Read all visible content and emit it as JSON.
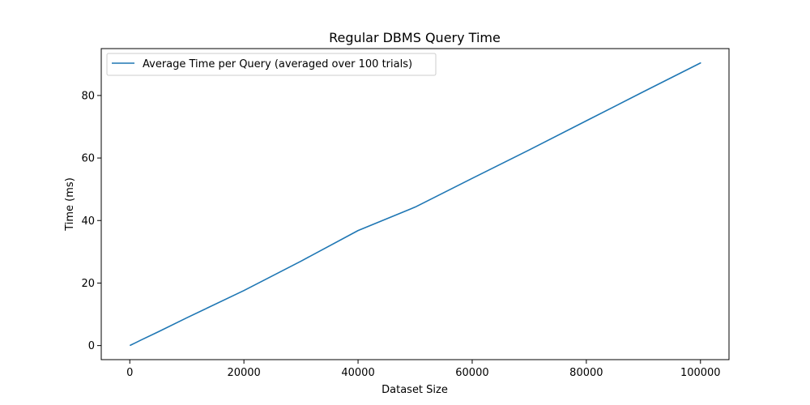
{
  "chart_data": {
    "type": "line",
    "title": "Regular DBMS Query Time",
    "xlabel": "Dataset Size",
    "ylabel": "Time (ms)",
    "xlim": [
      -5000,
      105000
    ],
    "ylim": [
      -4.5,
      95
    ],
    "x_ticks": [
      0,
      20000,
      40000,
      60000,
      80000,
      100000
    ],
    "y_ticks": [
      0,
      20,
      40,
      60,
      80
    ],
    "grid": false,
    "legend_position": "top-left",
    "series": [
      {
        "name": "Average Time per Query (averaged over 100 trials)",
        "color": "#1f77b4",
        "x": [
          100,
          1000,
          2000,
          5000,
          10000,
          20000,
          30000,
          40000,
          50000,
          60000,
          70000,
          80000,
          90000,
          100000
        ],
        "y": [
          0.1,
          0.9,
          1.8,
          4.4,
          8.9,
          17.6,
          27.0,
          36.8,
          44.3,
          53.5,
          62.6,
          71.9,
          81.2,
          90.4
        ]
      }
    ]
  }
}
